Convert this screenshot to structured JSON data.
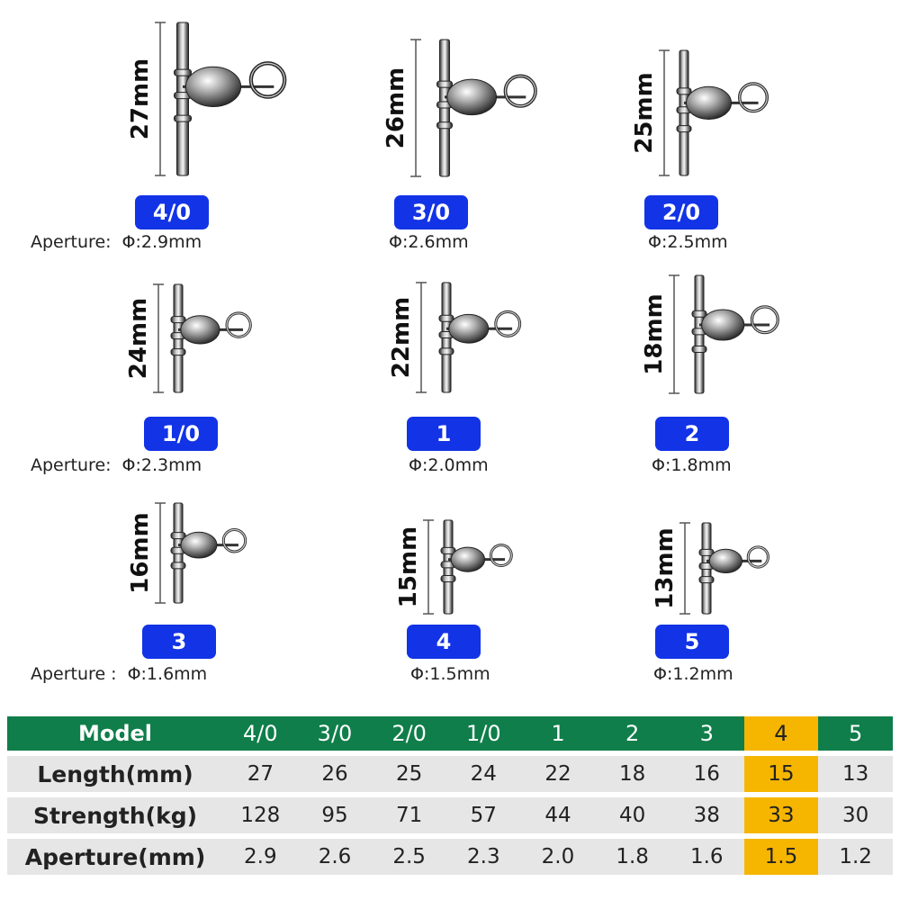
{
  "colors": {
    "badge": "#1233e6",
    "header": "#0f7e4a",
    "highlight": "#f6b600",
    "row": "#e6e6e6"
  },
  "items": [
    {
      "size": "4/0",
      "length": "27mm",
      "aperture_label": "Aperture:",
      "aperture": "Φ:2.9mm"
    },
    {
      "size": "3/0",
      "length": "26mm",
      "aperture_label": "",
      "aperture": "Φ:2.6mm"
    },
    {
      "size": "2/0",
      "length": "25mm",
      "aperture_label": "",
      "aperture": "Φ:2.5mm"
    },
    {
      "size": "1/0",
      "length": "24mm",
      "aperture_label": "Aperture:",
      "aperture": "Φ:2.3mm"
    },
    {
      "size": "1",
      "length": "22mm",
      "aperture_label": "",
      "aperture": "Φ:2.0mm"
    },
    {
      "size": "2",
      "length": "18mm",
      "aperture_label": "",
      "aperture": "Φ:1.8mm"
    },
    {
      "size": "3",
      "length": "16mm",
      "aperture_label": "Aperture :",
      "aperture": "Φ:1.6mm"
    },
    {
      "size": "4",
      "length": "15mm",
      "aperture_label": "",
      "aperture": "Φ:1.5mm"
    },
    {
      "size": "5",
      "length": "13mm",
      "aperture_label": "",
      "aperture": "Φ:1.2mm"
    }
  ],
  "table": {
    "header_label": "Model",
    "models": [
      "4/0",
      "3/0",
      "2/0",
      "1/0",
      "1",
      "2",
      "3",
      "4",
      "5"
    ],
    "highlight_index": 7,
    "rows": [
      {
        "label": "Length(mm)",
        "values": [
          "27",
          "26",
          "25",
          "24",
          "22",
          "18",
          "16",
          "15",
          "13"
        ]
      },
      {
        "label": "Strength(kg)",
        "values": [
          "128",
          "95",
          "71",
          "57",
          "44",
          "40",
          "38",
          "33",
          "30"
        ]
      },
      {
        "label": "Aperture(mm)",
        "values": [
          "2.9",
          "2.6",
          "2.5",
          "2.3",
          "2.0",
          "1.8",
          "1.6",
          "1.5",
          "1.2"
        ]
      }
    ]
  }
}
